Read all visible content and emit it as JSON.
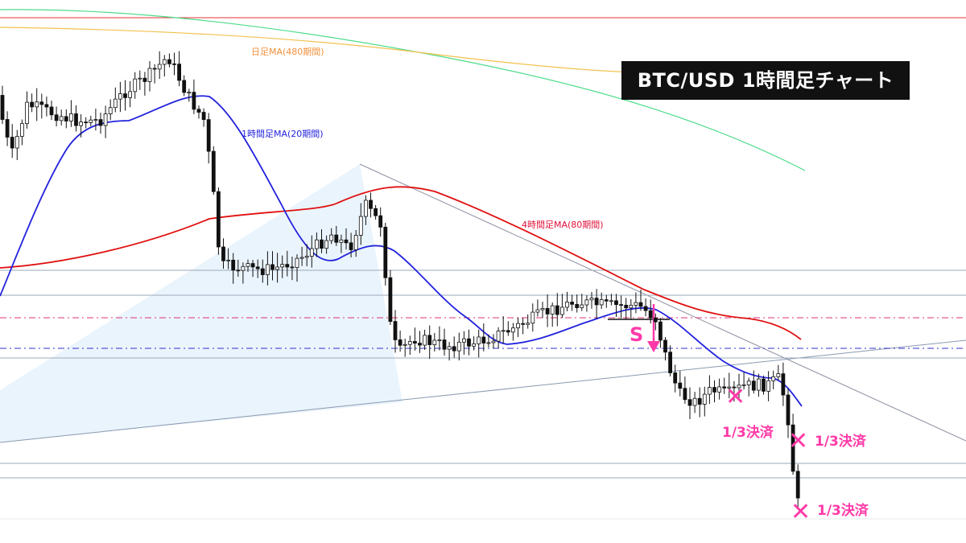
{
  "title": "BTC/USD  1時間足チャート",
  "chart_data": {
    "type": "candlestick",
    "title": "BTC/USD  1時間足チャート",
    "xlabel": "",
    "ylabel": "",
    "grid": false,
    "ma_labels": {
      "daily480": "日足MA(480期間)",
      "h1_20": "1時間足MA(20期間)",
      "h4_80": "4時間足MA(80期間)"
    },
    "colors": {
      "candle_up": "#ffffff",
      "candle_down": "#111111",
      "ma_daily480": "#f2c14e",
      "ma_green": "#4ddc8a",
      "ma_h1_20": "#2222dd",
      "ma_h4_80": "#e01010",
      "label_daily480": "#f0903a",
      "label_h1_20": "#2222dd",
      "label_h4_80": "#e0103a",
      "annotation": "#ff3aa8",
      "triangle_fill": "#e6f2fb",
      "hline": "#9aa8b8",
      "top_line": "#e83030",
      "dash_magenta": "#e0307a",
      "dash_blue": "#3030d0"
    },
    "annotations": {
      "short_signal": "S",
      "exit_label": "1/3決済",
      "exit_mark": "✕",
      "exit_count": 3
    }
  }
}
